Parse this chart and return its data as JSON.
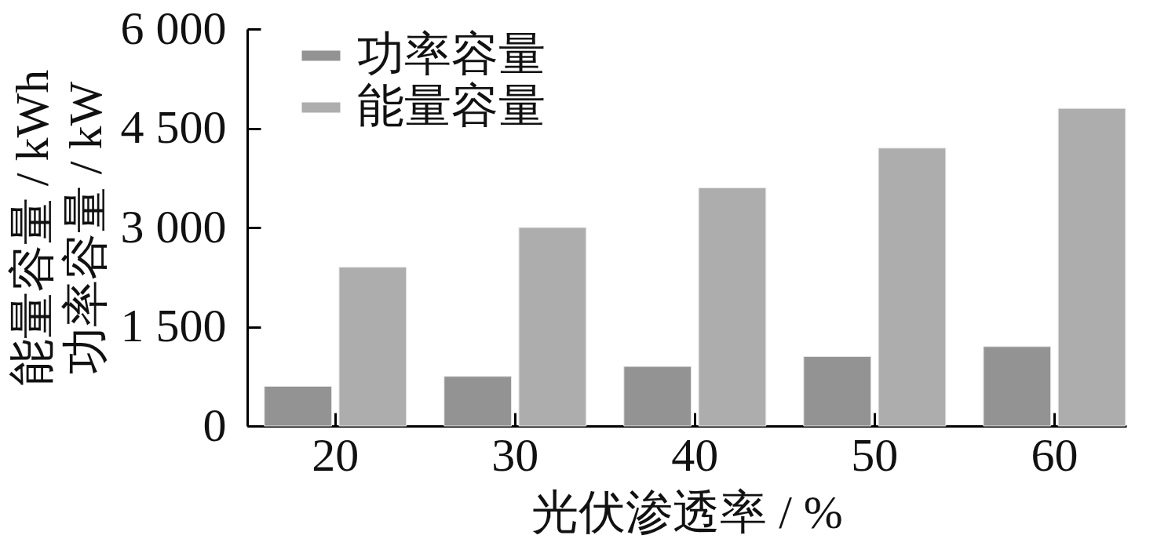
{
  "chart_data": {
    "type": "bar",
    "xlabel": "光伏渗透率 / %",
    "ylabel": "能量容量 / kWh\n功率容量 / kW",
    "categories": [
      "20",
      "30",
      "40",
      "50",
      "60"
    ],
    "series": [
      {
        "name": "功率容量",
        "color": "#939393",
        "values": [
          600,
          750,
          900,
          1050,
          1200
        ]
      },
      {
        "name": "能量容量",
        "color": "#adadad",
        "values": [
          2400,
          3000,
          3600,
          4200,
          4800
        ]
      }
    ],
    "ylim": [
      0,
      6000
    ],
    "yticks": [
      0,
      {
        "value": 1500,
        "label": "1 500"
      },
      {
        "value": 3000,
        "label": "3 000"
      },
      {
        "value": 4500,
        "label": "4 500"
      },
      {
        "value": 6000,
        "label": "6 000"
      }
    ],
    "grid": false,
    "legend": "top left"
  }
}
